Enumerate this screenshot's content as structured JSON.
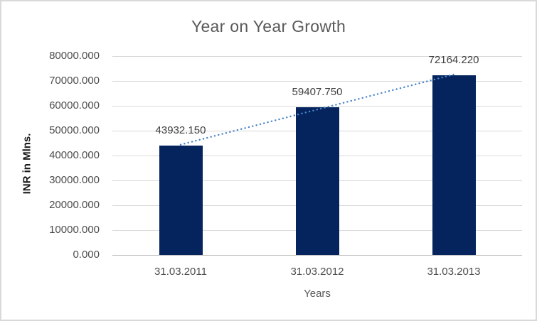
{
  "chart_data": {
    "type": "bar",
    "title": "Year on Year Growth",
    "categories": [
      "31.03.2011",
      "31.03.2012",
      "31.03.2013"
    ],
    "values": [
      43932.15,
      59407.75,
      72164.22
    ],
    "data_labels": [
      "43932.150",
      "59407.750",
      "72164.220"
    ],
    "xlabel": "Years",
    "ylabel": "INR in Mlns.",
    "ylim": [
      0,
      80000
    ],
    "ytick_step": 10000,
    "ytick_labels": [
      "80000.000",
      "70000.000",
      "60000.000",
      "50000.000",
      "40000.000",
      "30000.000",
      "20000.000",
      "10000.000",
      "0.000"
    ],
    "grid": true,
    "legend": "none",
    "trendline": {
      "type": "linear",
      "style": "dotted"
    },
    "colors": {
      "bar": "#05245e",
      "trendline": "#4a86c8",
      "gridline": "#d9d9d9",
      "axis_line": "#bfbfbf",
      "title_text": "#595959",
      "tick_text": "#4d4d4d",
      "data_label_text": "#404040",
      "axis_title_text": "#1a1a1a"
    }
  }
}
